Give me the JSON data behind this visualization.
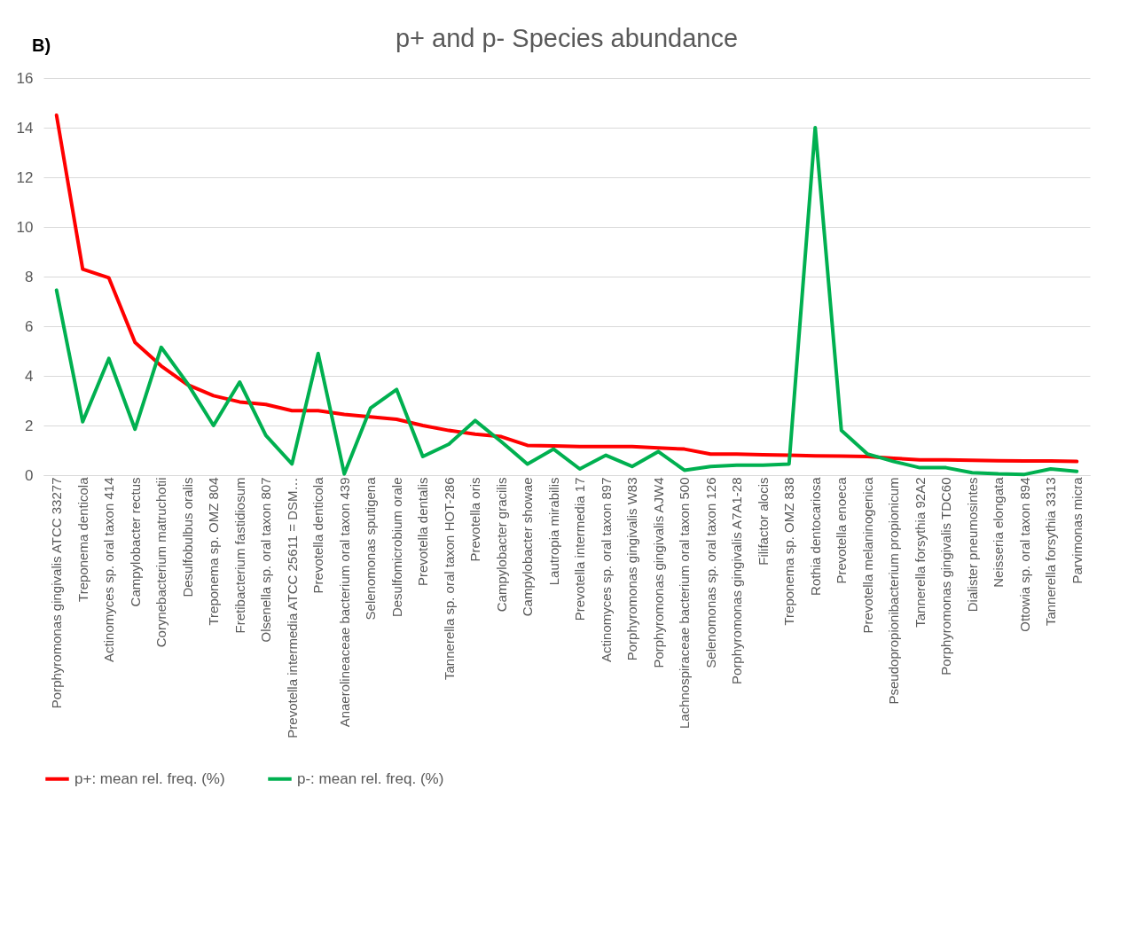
{
  "chart_data": {
    "type": "line",
    "title": "p+ and p- Species abundance",
    "annotations": [
      "B)"
    ],
    "categories": [
      "Porphyromonas gingivalis ATCC 33277",
      "Treponema denticola",
      "Actinomyces sp. oral taxon 414",
      "Campylobacter rectus",
      "Corynebacterium matruchotii",
      "Desulfobulbus oralis",
      "Treponema sp. OMZ 804",
      "Fretibacterium fastidiosum",
      "Olsenella sp. oral taxon 807",
      "Prevotella intermedia ATCC 25611 = DSM…",
      "Prevotella denticola",
      "Anaerolineaceae bacterium oral taxon 439",
      "Selenomonas sputigena",
      "Desulfomicrobium orale",
      "Prevotella dentalis",
      "Tannerella sp. oral taxon HOT-286",
      "Prevotella oris",
      "Campylobacter gracilis",
      "Campylobacter showae",
      "Lautropia mirabilis",
      "Prevotella intermedia 17",
      "Actinomyces sp. oral taxon 897",
      "Porphyromonas gingivalis W83",
      "Porphyromonas gingivalis AJW4",
      "Lachnospiraceae bacterium oral taxon 500",
      "Selenomonas sp. oral taxon 126",
      "Porphyromonas gingivalis A7A1-28",
      "Filifactor alocis",
      "Treponema sp. OMZ 838",
      "Rothia dentocariosa",
      "Prevotella enoeca",
      "Prevotella melaninogenica",
      "Pseudopropionibacterium propionicum",
      "Tannerella forsythia 92A2",
      "Porphyromonas gingivalis TDC60",
      "Dialister pneumosintes",
      "Neisseria elongata",
      "Ottowia sp. oral taxon 894",
      "Tannerella forsythia 3313",
      "Parvimonas micra"
    ],
    "series": [
      {
        "name": "p+: mean rel. freq. (%)",
        "color": "#ff0000",
        "values": [
          14.5,
          8.3,
          7.95,
          5.35,
          4.4,
          3.65,
          3.2,
          2.95,
          2.85,
          2.6,
          2.6,
          2.45,
          2.35,
          2.25,
          2.0,
          1.8,
          1.65,
          1.55,
          1.2,
          1.18,
          1.15,
          1.15,
          1.15,
          1.1,
          1.05,
          0.85,
          0.85,
          0.82,
          0.8,
          0.78,
          0.77,
          0.75,
          0.68,
          0.62,
          0.62,
          0.6,
          0.58,
          0.57,
          0.57,
          0.55
        ]
      },
      {
        "name": "p-: mean rel. freq. (%)",
        "color": "#00b050",
        "values": [
          7.45,
          2.15,
          4.7,
          1.85,
          5.15,
          3.7,
          2.0,
          3.75,
          1.6,
          0.45,
          4.9,
          0.05,
          2.7,
          3.45,
          0.75,
          1.25,
          2.2,
          1.35,
          0.45,
          1.05,
          0.25,
          0.8,
          0.35,
          0.95,
          0.2,
          0.35,
          0.4,
          0.4,
          0.45,
          14.0,
          1.8,
          0.85,
          0.55,
          0.3,
          0.3,
          0.1,
          0.05,
          0.03,
          0.25,
          0.15
        ]
      }
    ],
    "ylim": [
      0,
      16
    ],
    "yticks": [
      0,
      2,
      4,
      6,
      8,
      10,
      12,
      14,
      16
    ],
    "grid": "y",
    "legend": "bottom",
    "marker": "none",
    "line_style": "solid"
  }
}
